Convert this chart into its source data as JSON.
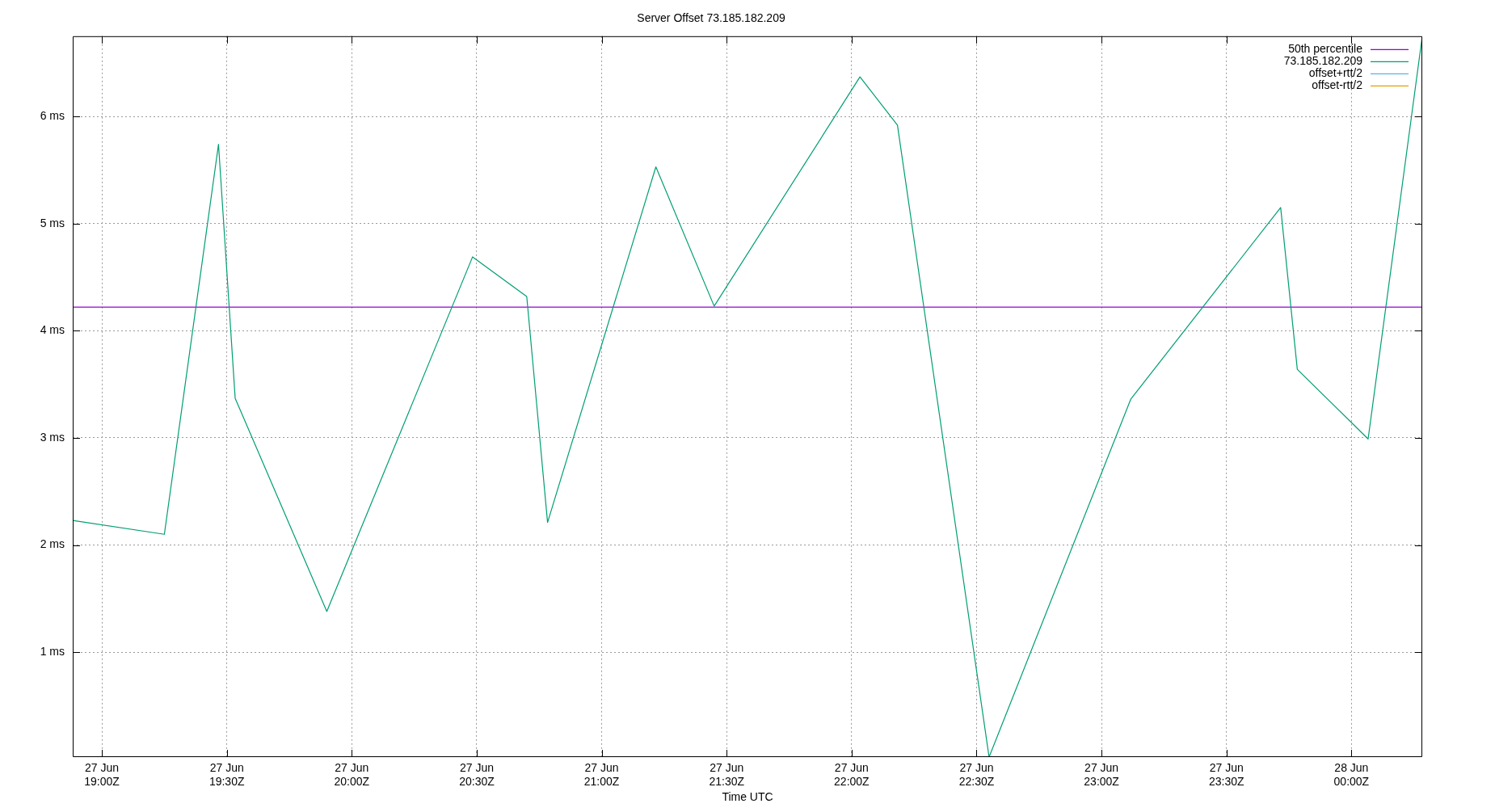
{
  "chart_data": {
    "type": "line",
    "title": "Server Offset 73.185.182.209",
    "xlabel": "Time UTC",
    "x": [
      "--06-27T18:53",
      "--06-27T19:15",
      "--06-27T19:28",
      "--06-27T19:32",
      "--06-27T19:54",
      "--06-27T20:29",
      "--06-27T20:42",
      "--06-27T20:47",
      "--06-27T21:13",
      "--06-27T21:27",
      "--06-27T22:02",
      "--06-27T22:11",
      "--06-27T22:33",
      "--06-27T23:07",
      "--06-27T23:43",
      "--06-27T23:47",
      "--06-28T00:04",
      "--06-28T00:17"
    ],
    "series": [
      {
        "name": "73.185.182.209",
        "color": "#009e73",
        "values": [
          2.23,
          2.1,
          5.74,
          3.37,
          1.38,
          4.69,
          4.32,
          2.21,
          5.53,
          4.23,
          6.37,
          5.92,
          0.02,
          3.36,
          5.15,
          3.64,
          2.99,
          6.75
        ]
      },
      {
        "name": "offset+rtt/2",
        "color": "#56b4e9",
        "values": [
          null,
          null,
          null,
          null,
          null,
          null,
          null,
          null,
          null,
          null,
          null,
          null,
          null,
          null,
          null,
          null,
          null,
          null
        ]
      },
      {
        "name": "offset-rtt/2",
        "color": "#e69f00",
        "values": [
          null,
          null,
          null,
          null,
          null,
          null,
          null,
          null,
          null,
          null,
          null,
          null,
          null,
          null,
          null,
          null,
          null,
          null
        ]
      }
    ],
    "ref_lines": [
      {
        "axis": "y",
        "value": 4.22,
        "label": "50th percentile",
        "color": "#9400d3"
      }
    ],
    "xlim": [
      "--06-27T18:53",
      "--06-28T00:17"
    ],
    "ylim": [
      0.02,
      6.75
    ],
    "xticks": [
      {
        "value": "--06-27T19:00",
        "label": "27 Jun\n19:00Z"
      },
      {
        "value": "--06-27T19:30",
        "label": "27 Jun\n19:30Z"
      },
      {
        "value": "--06-27T20:00",
        "label": "27 Jun\n20:00Z"
      },
      {
        "value": "--06-27T20:30",
        "label": "27 Jun\n20:30Z"
      },
      {
        "value": "--06-27T21:00",
        "label": "27 Jun\n21:00Z"
      },
      {
        "value": "--06-27T21:30",
        "label": "27 Jun\n21:30Z"
      },
      {
        "value": "--06-27T22:00",
        "label": "27 Jun\n22:00Z"
      },
      {
        "value": "--06-27T22:30",
        "label": "27 Jun\n22:30Z"
      },
      {
        "value": "--06-27T23:00",
        "label": "27 Jun\n23:00Z"
      },
      {
        "value": "--06-27T23:30",
        "label": "27 Jun\n23:30Z"
      },
      {
        "value": "--06-28T00:00",
        "label": "28 Jun\n00:00Z"
      }
    ],
    "yticks": [
      {
        "value": 1,
        "label": "1 ms"
      },
      {
        "value": 2,
        "label": "2 ms"
      },
      {
        "value": 3,
        "label": "3 ms"
      },
      {
        "value": 4,
        "label": "4 ms"
      },
      {
        "value": 5,
        "label": "5 ms"
      },
      {
        "value": 6,
        "label": "6 ms"
      }
    ],
    "grid": true,
    "legend": "top right",
    "marker": "none",
    "line_style": "solid"
  }
}
